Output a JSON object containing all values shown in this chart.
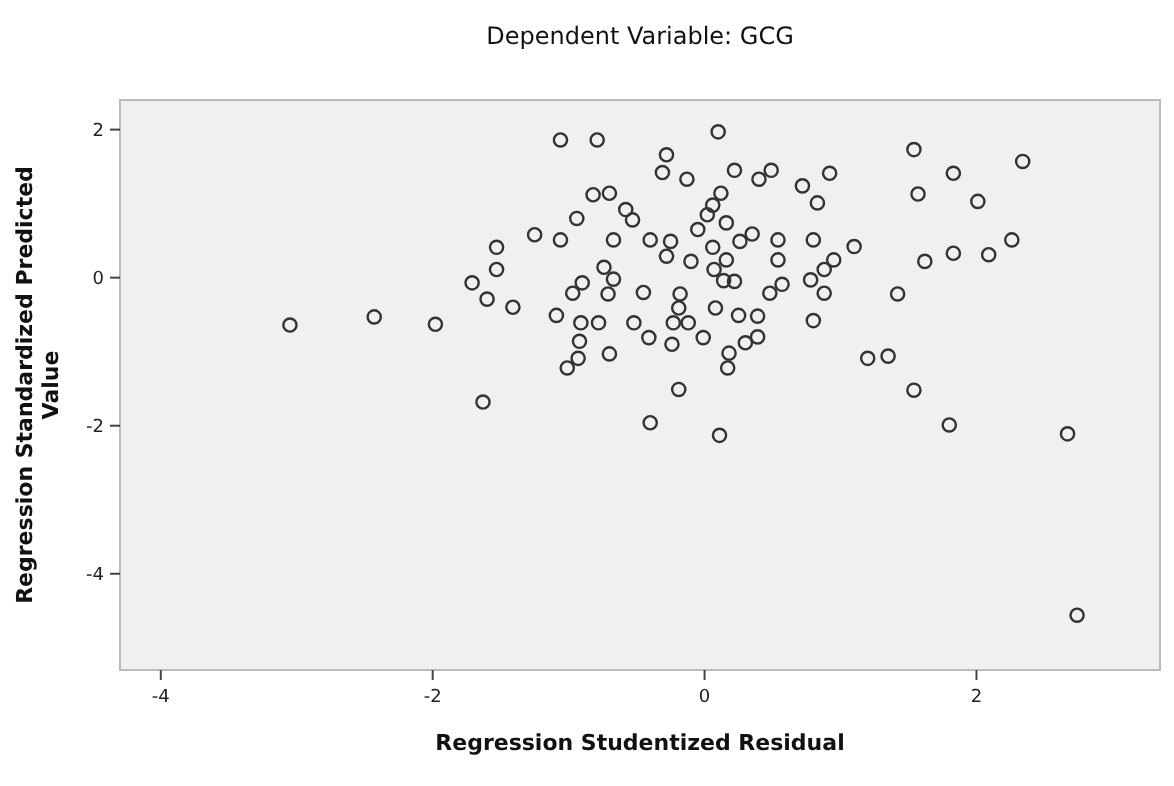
{
  "chart_data": {
    "type": "scatter",
    "title": "Dependent Variable: GCG",
    "xlabel": "Regression Studentized Residual",
    "ylabel": "Regression Standardized Predicted Value",
    "xlim": [
      -4.3,
      3.35
    ],
    "ylim": [
      -5.3,
      2.4
    ],
    "xticks": [
      -4,
      -2,
      0,
      2
    ],
    "yticks": [
      -4,
      -2,
      0,
      2
    ],
    "grid": false,
    "marker": "circle",
    "series": [
      {
        "color": "#333333",
        "x": [
          -3.05,
          -2.43,
          -1.98,
          -1.63,
          -1.06,
          -0.79,
          -1.53,
          -1.53,
          -1.71,
          -1.6,
          -1.41,
          -1.25,
          -1.06,
          -0.94,
          -0.82,
          -0.7,
          -0.58,
          -0.53,
          -0.67,
          -0.4,
          -0.74,
          -0.67,
          -0.9,
          -0.97,
          -0.71,
          -0.45,
          -1.09,
          -0.91,
          -0.78,
          -0.52,
          -0.41,
          -0.92,
          -0.93,
          -1.01,
          -0.7,
          -0.4,
          0.1,
          -0.28,
          -0.31,
          -0.13,
          0.22,
          0.4,
          0.49,
          0.72,
          0.92,
          0.83,
          1.54,
          1.83,
          2.34,
          1.57,
          2.01,
          0.12,
          0.06,
          0.02,
          -0.05,
          0.16,
          0.26,
          0.35,
          0.54,
          0.54,
          0.8,
          1.1,
          -0.25,
          -0.28,
          -0.1,
          0.06,
          0.16,
          0.07,
          0.14,
          0.22,
          0.57,
          0.48,
          0.95,
          0.88,
          0.78,
          0.88,
          1.42,
          1.62,
          1.83,
          2.09,
          2.26,
          -0.18,
          -0.19,
          0.08,
          0.25,
          0.39,
          0.8,
          -0.23,
          -0.12,
          -0.24,
          -0.01,
          0.18,
          0.3,
          0.39,
          0.17,
          1.2,
          1.35,
          -0.19,
          1.54,
          0.11,
          1.8,
          2.67,
          2.74
        ],
        "values": [
          -0.64,
          -0.53,
          -0.63,
          -1.68,
          1.86,
          1.86,
          0.41,
          0.11,
          -0.07,
          -0.29,
          -0.4,
          0.58,
          0.51,
          0.8,
          1.12,
          1.14,
          0.92,
          0.78,
          0.51,
          0.51,
          0.14,
          -0.02,
          -0.07,
          -0.21,
          -0.22,
          -0.2,
          -0.51,
          -0.61,
          -0.61,
          -0.61,
          -0.81,
          -0.86,
          -1.09,
          -1.22,
          -1.03,
          -1.96,
          1.97,
          1.66,
          1.42,
          1.33,
          1.45,
          1.33,
          1.45,
          1.24,
          1.41,
          1.01,
          1.73,
          1.41,
          1.57,
          1.13,
          1.03,
          1.14,
          0.98,
          0.85,
          0.65,
          0.74,
          0.49,
          0.59,
          0.51,
          0.24,
          0.51,
          0.42,
          0.49,
          0.29,
          0.22,
          0.41,
          0.24,
          0.11,
          -0.04,
          -0.05,
          -0.09,
          -0.21,
          0.24,
          0.11,
          -0.03,
          -0.21,
          -0.22,
          0.22,
          0.33,
          0.31,
          0.51,
          -0.22,
          -0.41,
          -0.41,
          -0.51,
          -0.52,
          -0.58,
          -0.61,
          -0.61,
          -0.9,
          -0.81,
          -1.02,
          -0.88,
          -0.8,
          -1.22,
          -1.09,
          -1.06,
          -1.51,
          -1.52,
          -2.13,
          -1.99,
          -2.11,
          -4.56
        ]
      }
    ]
  }
}
